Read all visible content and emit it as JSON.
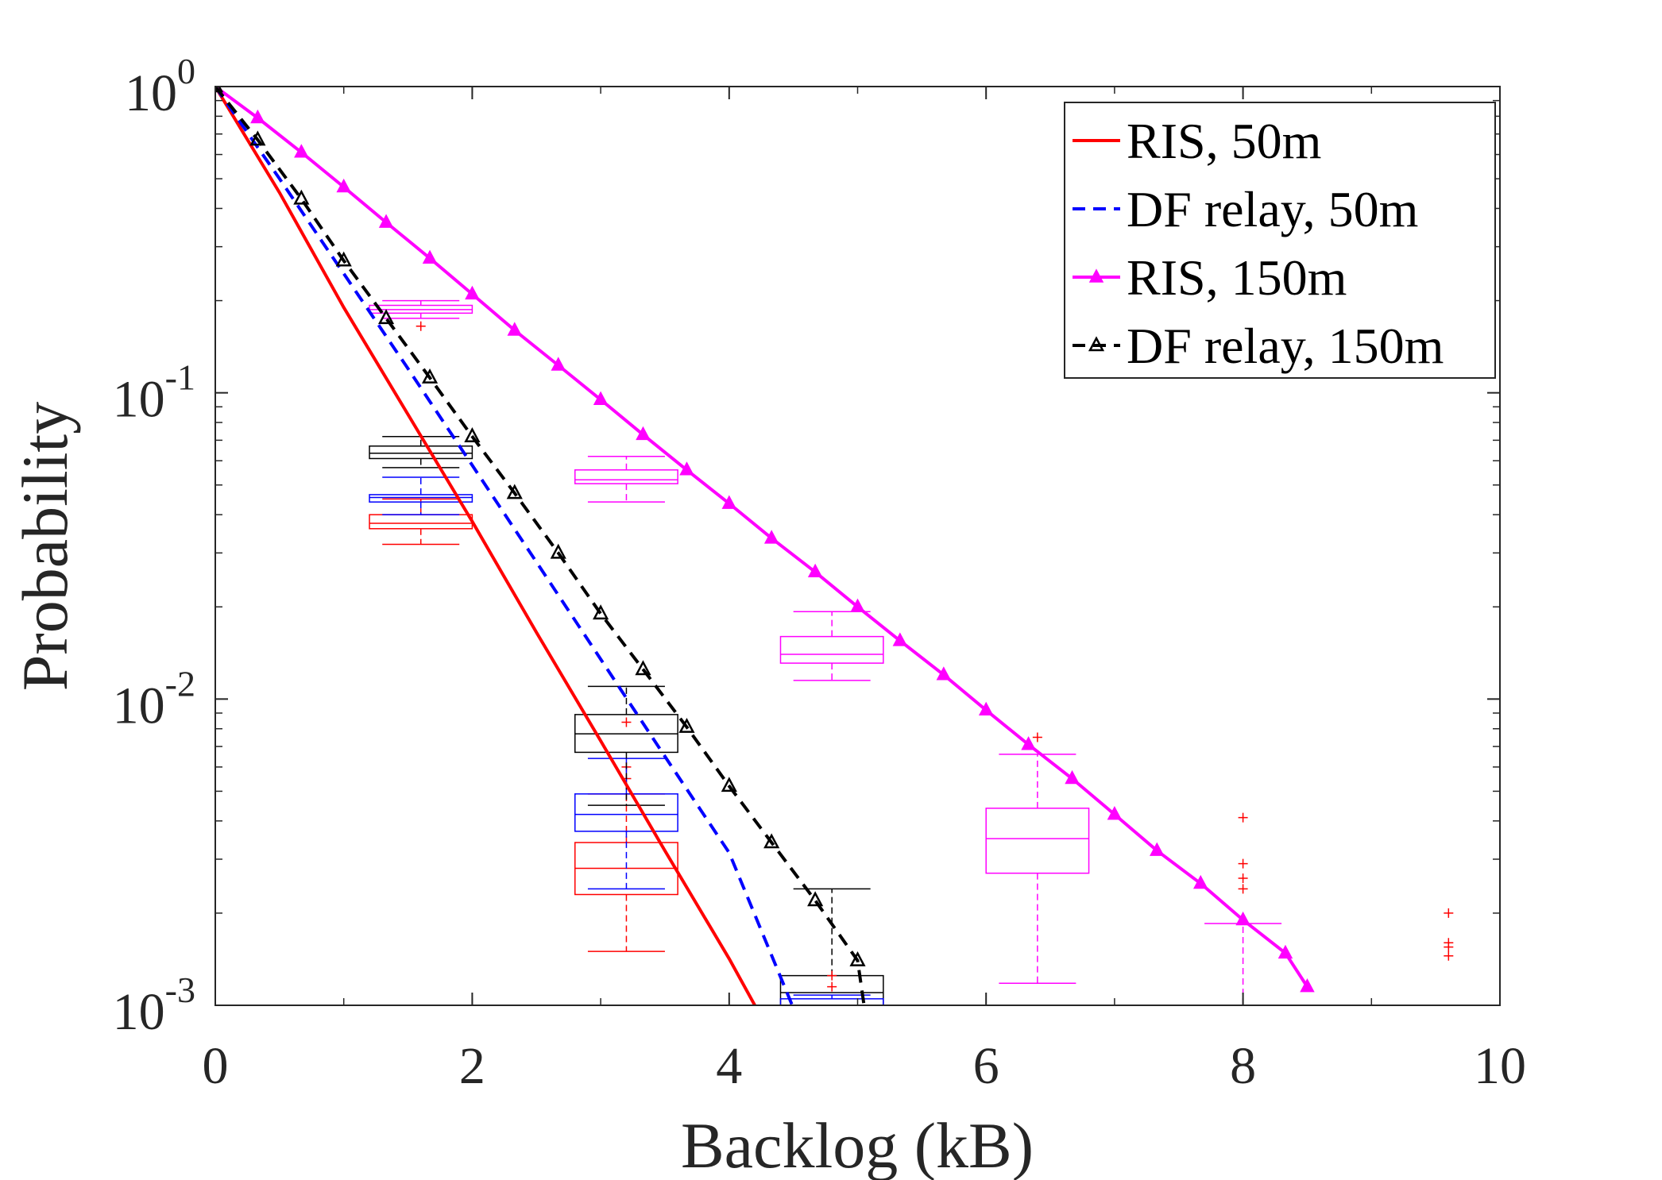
{
  "chart_data": {
    "type": "line",
    "xlabel": "Backlog (kB)",
    "ylabel": "Probability",
    "xlim": [
      0,
      10
    ],
    "ylim": [
      0.001,
      1
    ],
    "yscale": "log",
    "x_ticks": [
      "0",
      "2",
      "4",
      "6",
      "8",
      "10"
    ],
    "y_ticks": [
      {
        "base": "10",
        "exp": "0"
      },
      {
        "base": "10",
        "exp": "-1"
      },
      {
        "base": "10",
        "exp": "-2"
      },
      {
        "base": "10",
        "exp": "-3"
      }
    ],
    "legend_position": "top-right",
    "series": [
      {
        "name": "RIS, 50m",
        "color": "#ff0000",
        "dash": "solid",
        "marker": "none",
        "x": [
          0,
          0.5,
          1,
          1.5,
          2,
          2.5,
          3,
          3.5,
          4,
          4.2
        ],
        "y": [
          1,
          0.45,
          0.19,
          0.085,
          0.038,
          0.0165,
          0.0073,
          0.0032,
          0.00142,
          0.001
        ]
      },
      {
        "name": "DF relay, 50m",
        "color": "#0000ff",
        "dash": "dashed",
        "marker": "none",
        "x": [
          0,
          0.5,
          1,
          1.5,
          2,
          2.5,
          3,
          3.5,
          4,
          4.5
        ],
        "y": [
          1,
          0.5,
          0.245,
          0.12,
          0.058,
          0.028,
          0.0135,
          0.0065,
          0.00315,
          0.00098
        ]
      },
      {
        "name": "RIS, 150m",
        "color": "#ff00ff",
        "dash": "solid",
        "marker": "filled-triangle",
        "x": [
          0,
          0.33,
          0.67,
          1,
          1.33,
          1.67,
          2,
          2.33,
          2.67,
          3,
          3.33,
          3.67,
          4,
          4.33,
          4.67,
          5,
          5.33,
          5.67,
          6,
          6.33,
          6.67,
          7,
          7.33,
          7.67,
          8,
          8.33,
          8.5
        ],
        "y": [
          1,
          0.79,
          0.61,
          0.47,
          0.36,
          0.275,
          0.21,
          0.16,
          0.123,
          0.095,
          0.073,
          0.056,
          0.0435,
          0.0335,
          0.026,
          0.02,
          0.0155,
          0.012,
          0.0092,
          0.0071,
          0.0055,
          0.0042,
          0.0032,
          0.0025,
          0.0019,
          0.00148,
          0.00115
        ]
      },
      {
        "name": "DF relay, 150m",
        "color": "#000000",
        "dash": "dashed",
        "marker": "open-triangle",
        "x": [
          0,
          0.33,
          0.67,
          1,
          1.33,
          1.67,
          2,
          2.33,
          2.67,
          3,
          3.33,
          3.67,
          4,
          4.33,
          4.67,
          5,
          5.05
        ],
        "y": [
          1,
          0.67,
          0.43,
          0.27,
          0.175,
          0.112,
          0.072,
          0.047,
          0.03,
          0.019,
          0.0125,
          0.0081,
          0.0052,
          0.0034,
          0.0022,
          0.0014,
          0.001
        ]
      }
    ],
    "boxplots": [
      {
        "x": 1.6,
        "color": "#ff0000",
        "q1": 0.036,
        "median": 0.0375,
        "q3": 0.04,
        "whisker_low": 0.032,
        "whisker_high": 0.045,
        "outliers": []
      },
      {
        "x": 1.6,
        "color": "#0000ff",
        "q1": 0.044,
        "median": 0.0455,
        "q3": 0.0465,
        "whisker_low": 0.04,
        "whisker_high": 0.053,
        "outliers": []
      },
      {
        "x": 1.6,
        "color": "#000000",
        "q1": 0.061,
        "median": 0.0635,
        "q3": 0.067,
        "whisker_low": 0.057,
        "whisker_high": 0.072,
        "outliers": []
      },
      {
        "x": 1.6,
        "color": "#ff00ff",
        "q1": 0.182,
        "median": 0.187,
        "q3": 0.193,
        "whisker_low": 0.175,
        "whisker_high": 0.2,
        "outliers": [
          0.165
        ]
      },
      {
        "x": 3.2,
        "color": "#ff0000",
        "q1": 0.0023,
        "median": 0.0028,
        "q3": 0.0034,
        "whisker_low": 0.0015,
        "whisker_high": 0.0049,
        "outliers": [
          0.0084,
          0.006,
          0.0055
        ]
      },
      {
        "x": 3.2,
        "color": "#0000ff",
        "q1": 0.0037,
        "median": 0.0042,
        "q3": 0.0049,
        "whisker_low": 0.0024,
        "whisker_high": 0.0064,
        "outliers": []
      },
      {
        "x": 3.2,
        "color": "#000000",
        "q1": 0.0067,
        "median": 0.0077,
        "q3": 0.0089,
        "whisker_low": 0.0045,
        "whisker_high": 0.011,
        "outliers": []
      },
      {
        "x": 3.2,
        "color": "#ff00ff",
        "q1": 0.0505,
        "median": 0.052,
        "q3": 0.056,
        "whisker_low": 0.044,
        "whisker_high": 0.062,
        "outliers": []
      },
      {
        "x": 4.8,
        "color": "#000000",
        "q1": 0.00095,
        "median": 0.0011,
        "q3": 0.00125,
        "whisker_low": 0.0009,
        "whisker_high": 0.0024,
        "outliers": []
      },
      {
        "x": 4.8,
        "color": "#0000ff",
        "q1": 0.00095,
        "median": 0.001,
        "q3": 0.00105,
        "whisker_low": 0.0009,
        "whisker_high": 0.00108,
        "outliers": [
          0.00125,
          0.00115
        ]
      },
      {
        "x": 4.8,
        "color": "#ff00ff",
        "q1": 0.0131,
        "median": 0.014,
        "q3": 0.016,
        "whisker_low": 0.0115,
        "whisker_high": 0.0193,
        "outliers": []
      },
      {
        "x": 6.4,
        "color": "#ff00ff",
        "q1": 0.0027,
        "median": 0.0035,
        "q3": 0.0044,
        "whisker_low": 0.00118,
        "whisker_high": 0.0066,
        "outliers": [
          0.0075
        ]
      },
      {
        "x": 8.0,
        "color": "#ff00ff",
        "q1": 0.00095,
        "median": 0.00097,
        "q3": 0.001,
        "whisker_low": 0.0009,
        "whisker_high": 0.00185,
        "outliers": [
          0.0041,
          0.0029,
          0.0026,
          0.0024
        ]
      },
      {
        "x": 9.6,
        "color": "#ff0000",
        "q1": 0.00095,
        "median": 0.00096,
        "q3": 0.00098,
        "whisker_low": 0.0009,
        "whisker_high": 0.00098,
        "outliers": [
          0.002,
          0.0016,
          0.00155,
          0.00145
        ]
      }
    ]
  }
}
